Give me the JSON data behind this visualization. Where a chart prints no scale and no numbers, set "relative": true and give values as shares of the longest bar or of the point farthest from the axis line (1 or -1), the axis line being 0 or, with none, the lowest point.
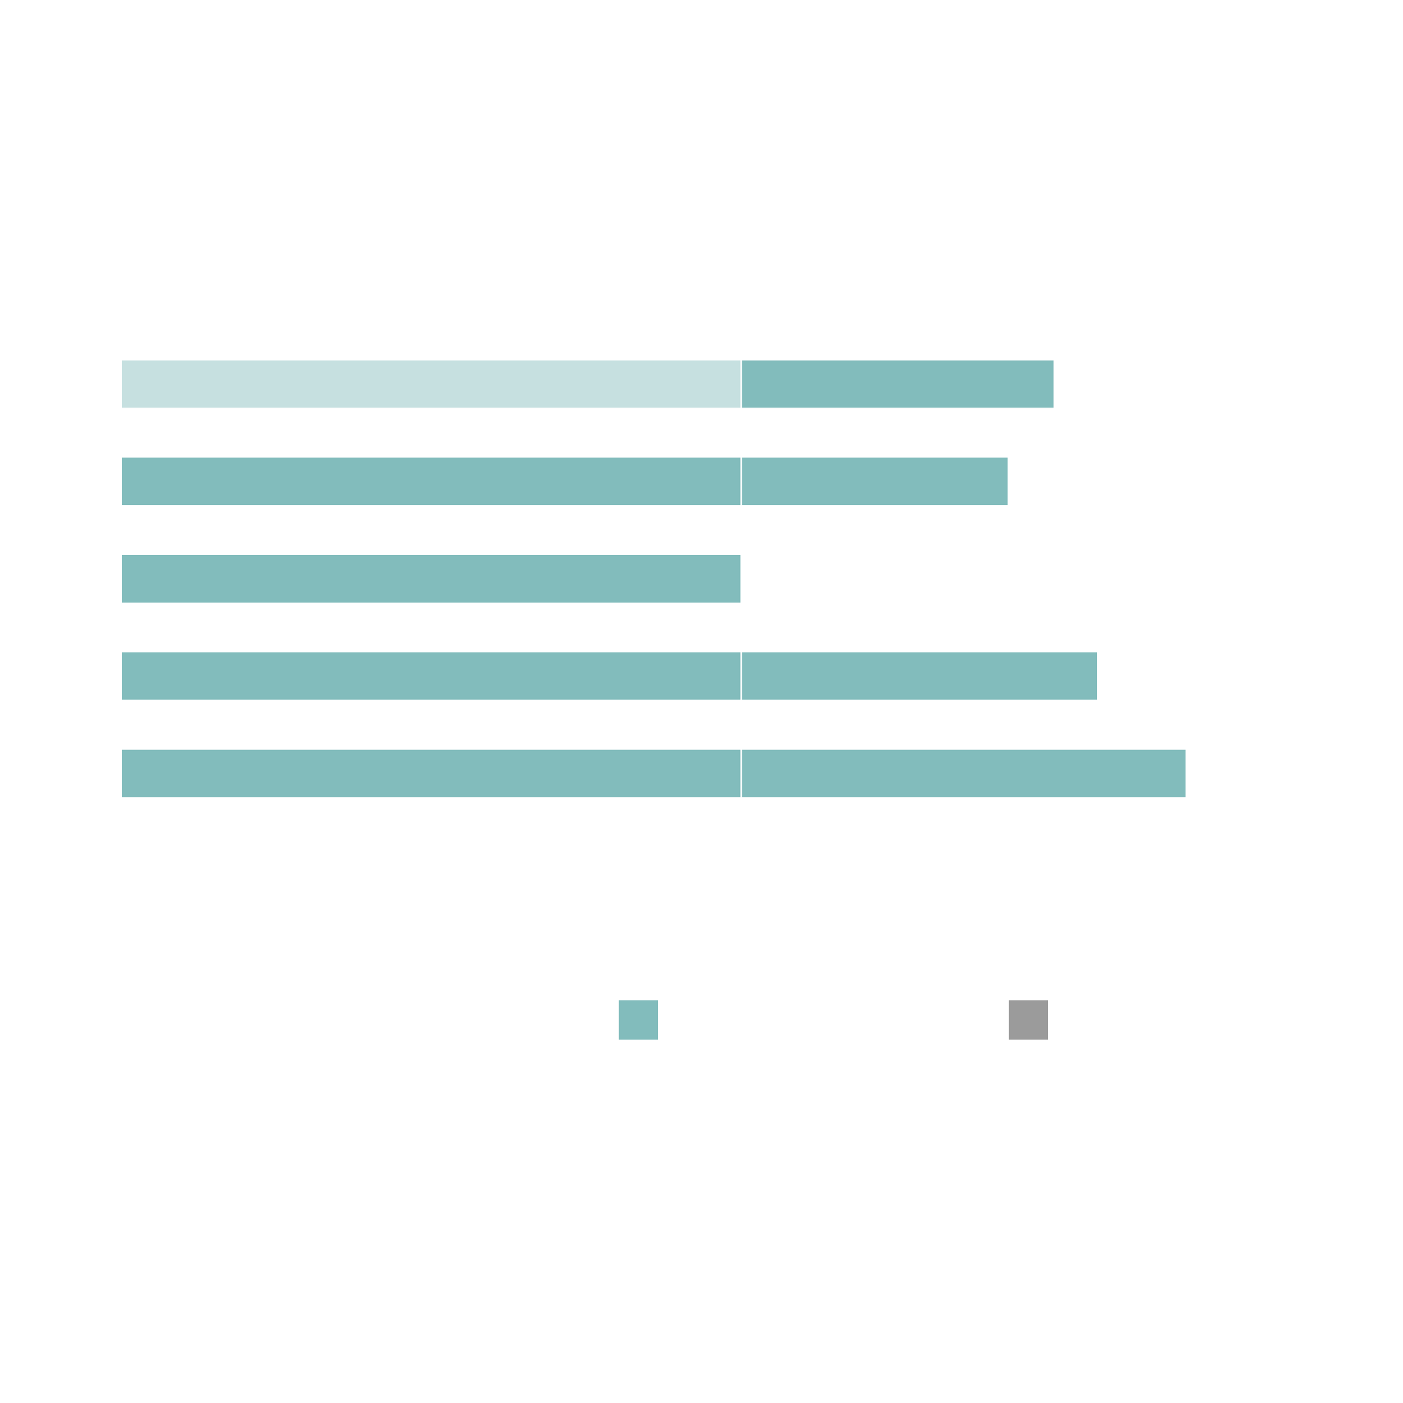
{
  "chart_data": {
    "type": "bar",
    "orientation": "horizontal",
    "stacked": true,
    "relative": true,
    "categories": [
      null,
      null,
      null,
      null,
      null
    ],
    "series": [
      {
        "color": "#82bcbc",
        "colors": [
          "#c6e0e0",
          "#82bcbc",
          "#82bcbc",
          "#82bcbc",
          "#82bcbc"
        ],
        "values": [
          0.582,
          0.582,
          0.582,
          0.582,
          0.582
        ]
      },
      {
        "color": "#82bcbc",
        "values": [
          0.294,
          0.251,
          null,
          0.335,
          0.418
        ]
      }
    ]
  }
}
